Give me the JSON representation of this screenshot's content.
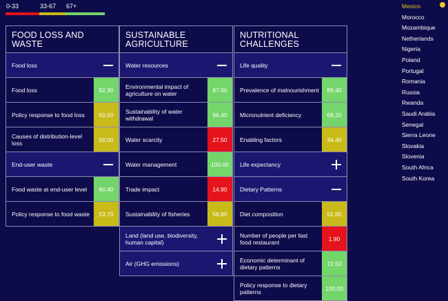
{
  "legend": [
    {
      "label": "0-33",
      "color": "#e5131b"
    },
    {
      "label": "33-67",
      "color": "#c8ba19"
    },
    {
      "label": "67+",
      "color": "#74d56a"
    }
  ],
  "columns": [
    {
      "title": "FOOD LOSS AND WASTE",
      "sections": [
        {
          "label": "Food loss",
          "expanded": true,
          "toggle_icon": "minus-icon",
          "rows": [
            {
              "label": "Food loss",
              "score": "92.30",
              "level": "g"
            },
            {
              "label": "Policy response to food loss",
              "score": "50.00",
              "level": "y"
            },
            {
              "label": "Causes of distribution-level loss",
              "score": "50.00",
              "level": "y"
            }
          ]
        },
        {
          "label": "End-user waste",
          "expanded": true,
          "toggle_icon": "minus-icon",
          "rows": [
            {
              "label": "Food waste at end-user level",
              "score": "80.40",
              "level": "g"
            },
            {
              "label": "Policy response to food waste",
              "score": "53.70",
              "level": "y"
            }
          ]
        }
      ]
    },
    {
      "title": "SUSTAINABLE AGRICULTURE",
      "sections": [
        {
          "label": "Water resources",
          "expanded": true,
          "toggle_icon": "minus-icon",
          "rows": [
            {
              "label": "Environmental impact of agriculture on water",
              "score": "87.60",
              "level": "g"
            },
            {
              "label": "Sustainability of water withdrawal",
              "score": "99.40",
              "level": "g"
            },
            {
              "label": "Water scarcity",
              "score": "27.50",
              "level": "r"
            },
            {
              "label": "Water management",
              "score": "100.00",
              "level": "g"
            },
            {
              "label": "Trade impact",
              "score": "14.90",
              "level": "r"
            },
            {
              "label": "Sustainability of fisheries",
              "score": "56.80",
              "level": "y"
            }
          ]
        },
        {
          "label": "Land (land use, biodiversity, human capital)",
          "expanded": false,
          "toggle_icon": "plus-icon",
          "rows": []
        },
        {
          "label": "Air (GHG emissions)",
          "expanded": false,
          "toggle_icon": "plus-icon",
          "rows": []
        }
      ]
    },
    {
      "title": "NUTRITIONAL CHALLENGES",
      "sections": [
        {
          "label": "Life quality",
          "expanded": true,
          "toggle_icon": "minus-icon",
          "rows": [
            {
              "label": "Prevalence of malnourishment",
              "score": "89.40",
              "level": "g"
            },
            {
              "label": "Micronutrient deficiency",
              "score": "68.20",
              "level": "g"
            },
            {
              "label": "Enabling factors",
              "score": "34.40",
              "level": "y"
            }
          ]
        },
        {
          "label": "Life expectancy",
          "expanded": false,
          "toggle_icon": "plus-icon",
          "rows": []
        },
        {
          "label": "Dietary Patterns",
          "expanded": true,
          "toggle_icon": "minus-icon",
          "rows": [
            {
              "label": "Diet composition",
              "score": "51.60",
              "level": "y"
            },
            {
              "label": "Number of people per fast food restaurant",
              "score": "1.90",
              "level": "r"
            },
            {
              "label": "Economic determinant of dietary patterns",
              "score": "72.50",
              "level": "g"
            },
            {
              "label": "Policy response to dietary patterns",
              "score": "100.00",
              "level": "g"
            }
          ]
        }
      ]
    }
  ],
  "countries": {
    "selected": "Mexico",
    "items": [
      "Mexico",
      "Morocco",
      "Mozambique",
      "Netherlands",
      "Nigeria",
      "Poland",
      "Portugal",
      "Romania",
      "Russia",
      "Rwanda",
      "Saudi Arabia",
      "Senegal",
      "Sierra Leone",
      "Slovakia",
      "Slovenia",
      "South Africa",
      "South Korea"
    ]
  }
}
